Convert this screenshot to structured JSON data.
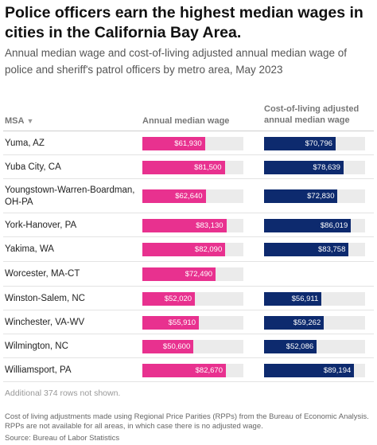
{
  "header": {
    "title": "Police officers earn the highest median wages in cities in the California Bay Area.",
    "subtitle": "Annual median wage and cost-of-living adjusted annual median wage of police and sheriff's patrol officers by metro area, May 2023"
  },
  "columns": {
    "msa": "MSA",
    "sort_icon": "sort-down-icon",
    "wage": "Annual median wage",
    "col": "Cost-of-living adjusted annual median wage"
  },
  "colors": {
    "wage_bar": "#e8318f",
    "col_bar": "#0d2a6e",
    "track": "#ebebeb"
  },
  "chart_data": {
    "type": "table",
    "scale_max": 100000,
    "rows": [
      {
        "msa": "Yuma, AZ",
        "wage": 61930,
        "wage_label": "$61,930",
        "col": 70796,
        "col_label": "$70,796"
      },
      {
        "msa": "Yuba City, CA",
        "wage": 81500,
        "wage_label": "$81,500",
        "col": 78639,
        "col_label": "$78,639"
      },
      {
        "msa": "Youngstown-Warren-Boardman, OH-PA",
        "wage": 62640,
        "wage_label": "$62,640",
        "col": 72830,
        "col_label": "$72,830"
      },
      {
        "msa": "York-Hanover, PA",
        "wage": 83130,
        "wage_label": "$83,130",
        "col": 86019,
        "col_label": "$86,019"
      },
      {
        "msa": "Yakima, WA",
        "wage": 82090,
        "wage_label": "$82,090",
        "col": 83758,
        "col_label": "$83,758"
      },
      {
        "msa": "Worcester, MA-CT",
        "wage": 72490,
        "wage_label": "$72,490",
        "col": null,
        "col_label": ""
      },
      {
        "msa": "Winston-Salem, NC",
        "wage": 52020,
        "wage_label": "$52,020",
        "col": 56911,
        "col_label": "$56,911"
      },
      {
        "msa": "Winchester, VA-WV",
        "wage": 55910,
        "wage_label": "$55,910",
        "col": 59262,
        "col_label": "$59,262"
      },
      {
        "msa": "Wilmington, NC",
        "wage": 50600,
        "wage_label": "$50,600",
        "col": 52086,
        "col_label": "$52,086"
      },
      {
        "msa": "Williamsport, PA",
        "wage": 82670,
        "wage_label": "$82,670",
        "col": 89194,
        "col_label": "$89,194"
      }
    ]
  },
  "footer": {
    "rows_note": "Additional 374 rows not shown.",
    "note": "Cost of living adjustments made using Regional Price Parities (RPPs) from the Bureau of Economic Analysis. RPPs are not available for all areas, in which case there is no adjusted wage.",
    "source": "Source: Bureau of Labor Statistics"
  }
}
